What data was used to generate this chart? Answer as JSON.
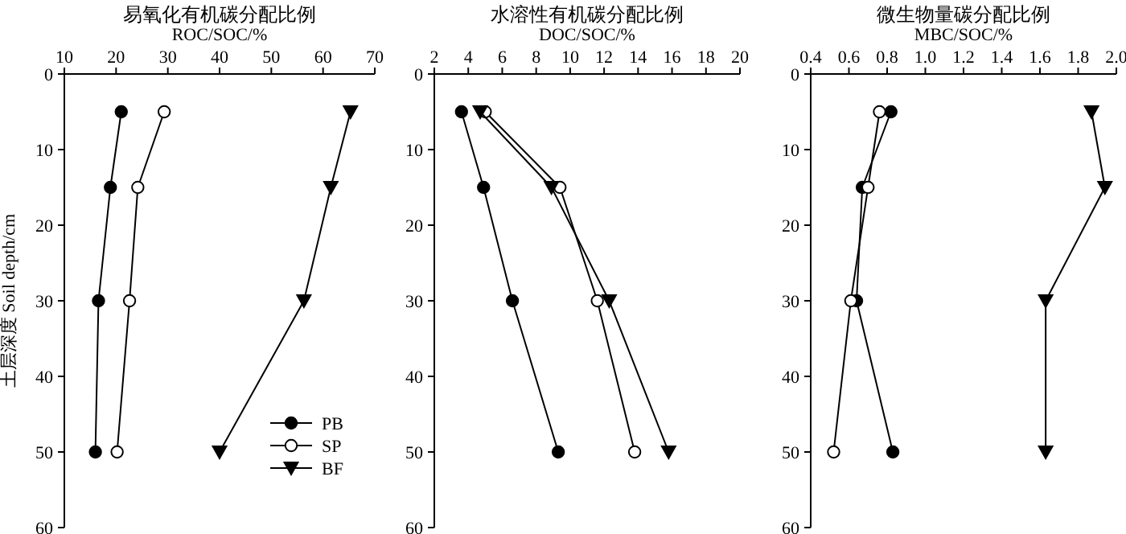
{
  "chart_data": [
    {
      "type": "line",
      "title": "易氧化有机碳分配比例",
      "xlabel": "ROC/SOC/%",
      "ylabel": "土层深度 Soil depth/cm",
      "xlim": [
        10,
        70
      ],
      "xticks": [
        10,
        20,
        30,
        40,
        50,
        60,
        70
      ],
      "ylim": [
        60,
        0
      ],
      "yticks": [
        0,
        10,
        20,
        30,
        40,
        50,
        60
      ],
      "legend": "bottom right",
      "series": [
        {
          "name": "PB",
          "color": "#000000",
          "marker": "circle",
          "x": [
            21.0,
            18.9,
            16.6,
            16.0
          ],
          "values": [
            5,
            15,
            30,
            50
          ]
        },
        {
          "name": "SP",
          "color": "#ffffff",
          "marker": "circle",
          "x": [
            29.3,
            24.2,
            22.6,
            20.2
          ],
          "values": [
            5,
            15,
            30,
            50
          ]
        },
        {
          "name": "BF",
          "color": "#000000",
          "marker": "triangle",
          "x": [
            65.3,
            61.5,
            56.3,
            40.0
          ],
          "values": [
            5,
            15,
            30,
            50
          ]
        }
      ]
    },
    {
      "type": "line",
      "title": "水溶性有机碳分配比例",
      "xlabel": "DOC/SOC/%",
      "xlim": [
        2,
        20
      ],
      "xticks": [
        2,
        4,
        6,
        8,
        10,
        12,
        14,
        16,
        18,
        20
      ],
      "ylim": [
        60,
        0
      ],
      "yticks": [
        0,
        10,
        20,
        30,
        40,
        50,
        60
      ],
      "series": [
        {
          "color": "#000000",
          "marker": "circle",
          "x": [
            3.6,
            4.9,
            6.6,
            9.3
          ],
          "values": [
            5,
            15,
            30,
            50
          ]
        },
        {
          "color": "#ffffff",
          "marker": "circle",
          "x": [
            5.0,
            9.4,
            11.6,
            13.8
          ],
          "values": [
            5,
            15,
            30,
            50
          ]
        },
        {
          "color": "#000000",
          "marker": "triangle",
          "x": [
            4.7,
            8.9,
            12.3,
            15.8
          ],
          "values": [
            5,
            15,
            30,
            50
          ]
        }
      ]
    },
    {
      "type": "line",
      "title": "微生物量碳分配比例",
      "xlabel": "MBC/SOC/%",
      "xlim": [
        0.4,
        2.0
      ],
      "xticks": [
        {
          "value": 0.4,
          "label": "0.4"
        },
        {
          "value": 0.6,
          "label": "0.6"
        },
        {
          "value": 0.8,
          "label": "0.8"
        },
        {
          "value": 1.0,
          "label": "1.0"
        },
        {
          "value": 1.2,
          "label": "1.2"
        },
        {
          "value": 1.4,
          "label": "1.4"
        },
        {
          "value": 1.6,
          "label": "1.6"
        },
        {
          "value": 1.8,
          "label": "1.8"
        },
        {
          "value": 2.0,
          "label": "2.0"
        }
      ],
      "ylim": [
        60,
        0
      ],
      "yticks": [
        0,
        10,
        20,
        30,
        40,
        50,
        60
      ],
      "series": [
        {
          "color": "#000000",
          "marker": "circle",
          "x": [
            0.82,
            0.67,
            0.64,
            0.83
          ],
          "values": [
            5,
            15,
            30,
            50
          ]
        },
        {
          "color": "#ffffff",
          "marker": "circle",
          "x": [
            0.76,
            0.7,
            0.61,
            0.52
          ],
          "values": [
            5,
            15,
            30,
            50
          ]
        },
        {
          "color": "#000000",
          "marker": "triangle",
          "x": [
            1.87,
            1.94,
            1.63,
            1.63
          ],
          "values": [
            5,
            15,
            30,
            50
          ]
        }
      ]
    }
  ]
}
